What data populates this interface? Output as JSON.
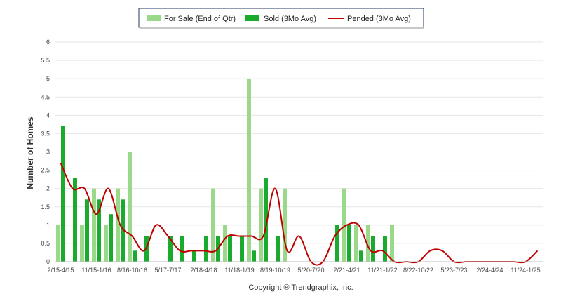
{
  "chart_data": {
    "type": "bar",
    "ylabel": "Number of Homes",
    "ylim": [
      0,
      6
    ],
    "yticks": [
      "0",
      "0.5",
      "1",
      "1.5",
      "2",
      "2.5",
      "3",
      "3.5",
      "4",
      "4.5",
      "5",
      "5.5",
      "6"
    ],
    "grid": true,
    "legend_position": "top-center",
    "xtick_labels": [
      "2/15-4/15",
      "11/15-1/16",
      "8/16-10/16",
      "5/17-7/17",
      "2/18-4/18",
      "11/18-1/19",
      "8/19-10/19",
      "5/20-7/20",
      "2/21-4/21",
      "11/21-1/22",
      "8/22-10/22",
      "5/23-7/23",
      "2/24-4/24",
      "11/24-1/25"
    ],
    "n_periods": 41,
    "series": [
      {
        "name": "For Sale (End of Qtr)",
        "kind": "bar",
        "color": "#9ad98a",
        "values": [
          1,
          0,
          1,
          2,
          1,
          2,
          3,
          0,
          0,
          0,
          0,
          0,
          0,
          2,
          1,
          0,
          5,
          2,
          0,
          2,
          0,
          0,
          0,
          0,
          2,
          1,
          1,
          0,
          1,
          0,
          0,
          0,
          0,
          0,
          0,
          0,
          0,
          0,
          0,
          0,
          0
        ]
      },
      {
        "name": "Sold (3Mo Avg)",
        "kind": "bar",
        "color": "#1aab2e",
        "values": [
          3.7,
          2.3,
          1.7,
          1.7,
          1.3,
          1.7,
          0.3,
          0.7,
          0,
          0.7,
          0.7,
          0.3,
          0.7,
          0.7,
          0.7,
          0.7,
          0.3,
          2.3,
          0.7,
          0,
          0,
          0,
          0,
          1,
          1,
          0.3,
          0.7,
          0.7,
          0,
          0,
          0,
          0,
          0,
          0,
          0,
          0,
          0,
          0,
          0,
          0,
          0
        ]
      },
      {
        "name": "Pended (3Mo Avg)",
        "kind": "line",
        "color": "#c00000",
        "values": [
          2.7,
          2.0,
          2.0,
          1.3,
          2.0,
          1.0,
          0.7,
          0.3,
          1.0,
          0.7,
          0.3,
          0.3,
          0.3,
          0.3,
          0.7,
          0.7,
          0.7,
          0.7,
          2.0,
          0.3,
          0.7,
          0,
          0,
          0.7,
          1.0,
          1.0,
          0.3,
          0.3,
          0,
          0,
          0,
          0.3,
          0.3,
          0,
          0,
          0,
          0,
          0,
          0,
          0,
          0.3
        ]
      }
    ],
    "footer": "Copyright ® Trendgraphix, Inc."
  }
}
